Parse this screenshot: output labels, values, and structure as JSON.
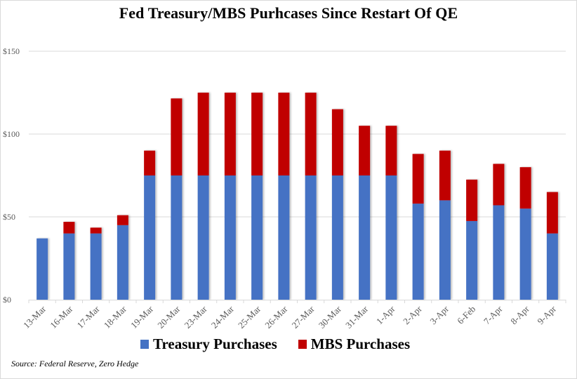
{
  "colors": {
    "treasury": "#4472C4",
    "mbs": "#C00000",
    "grid": "#d9d9d9",
    "axis_text": "#595959"
  },
  "source": "Source: Federal Reserve, Zero Hedge",
  "chart_data": {
    "type": "bar",
    "stacked": true,
    "title": "Fed Treasury/MBS Purhcases Since Restart Of QE",
    "xlabel": "",
    "ylabel": "",
    "ylim": [
      0,
      150
    ],
    "yticks": [
      0,
      50,
      100,
      150
    ],
    "ytick_labels": [
      "$0",
      "$50",
      "$100",
      "$150"
    ],
    "grid": true,
    "legend_position": "bottom",
    "categories": [
      "13-Mar",
      "16-Mar",
      "17-Mar",
      "18-Mar",
      "19-Mar",
      "20-Mar",
      "23-Mar",
      "24-Mar",
      "25-Mar",
      "26-Mar",
      "27-Mar",
      "30-Mar",
      "31-Mar",
      "1-Apr",
      "2-Apr",
      "3-Apr",
      "6-Feb",
      "7-Apr",
      "8-Apr",
      "9-Apr"
    ],
    "series": [
      {
        "name": "Treasury Purchases",
        "color": "#4472C4",
        "values": [
          37,
          40,
          40,
          45,
          75,
          75,
          75,
          75,
          75,
          75,
          75,
          75,
          75,
          75,
          58,
          60,
          47.5,
          57,
          55,
          40
        ]
      },
      {
        "name": "MBS Purchases",
        "color": "#C00000",
        "values": [
          0,
          7,
          3.5,
          6,
          15,
          46.5,
          50,
          50,
          50,
          50,
          50,
          40,
          30,
          30,
          30,
          30,
          25,
          25,
          25,
          25
        ]
      }
    ]
  }
}
